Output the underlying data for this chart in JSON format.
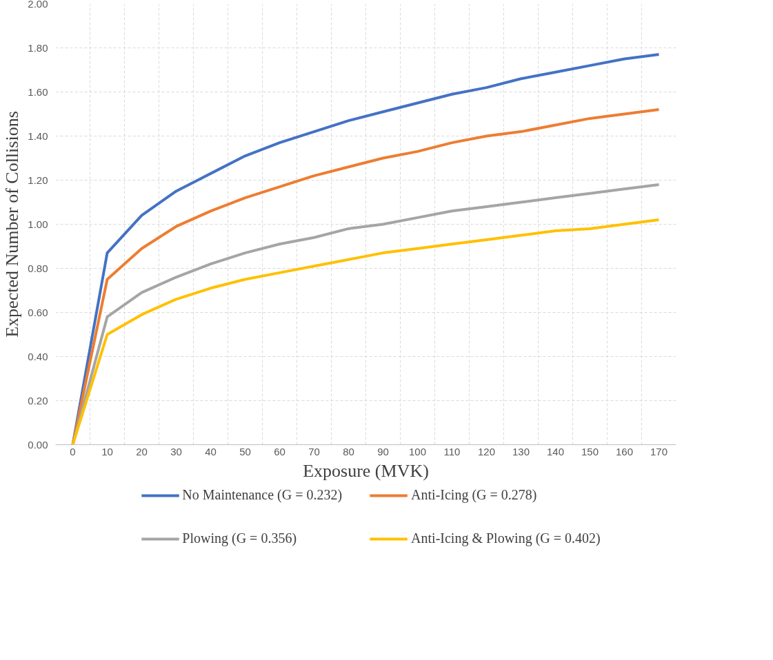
{
  "chart_data": {
    "type": "line",
    "xlabel": "Exposure (MVK)",
    "ylabel": "Expected Number of Collisions",
    "categories": [
      "0",
      "10",
      "20",
      "30",
      "40",
      "50",
      "60",
      "70",
      "80",
      "90",
      "100",
      "110",
      "120",
      "130",
      "140",
      "150",
      "160",
      "170"
    ],
    "series": [
      {
        "name": "No Maintenance (G = 0.232)",
        "color": "#4472c4",
        "values": [
          0,
          0.87,
          1.04,
          1.15,
          1.23,
          1.31,
          1.37,
          1.42,
          1.47,
          1.51,
          1.55,
          1.59,
          1.62,
          1.66,
          1.69,
          1.72,
          1.75,
          1.77
        ]
      },
      {
        "name": "Anti-Icing (G = 0.278)",
        "color": "#ed7d31",
        "values": [
          0,
          0.75,
          0.89,
          0.99,
          1.06,
          1.12,
          1.17,
          1.22,
          1.26,
          1.3,
          1.33,
          1.37,
          1.4,
          1.42,
          1.45,
          1.48,
          1.5,
          1.52
        ]
      },
      {
        "name": "Plowing (G = 0.356)",
        "color": "#a5a5a5",
        "values": [
          0,
          0.58,
          0.69,
          0.76,
          0.82,
          0.87,
          0.91,
          0.94,
          0.98,
          1.0,
          1.03,
          1.06,
          1.08,
          1.1,
          1.12,
          1.14,
          1.16,
          1.18
        ]
      },
      {
        "name": "Anti-Icing & Plowing (G = 0.402)",
        "color": "#ffc000",
        "values": [
          0,
          0.5,
          0.59,
          0.66,
          0.71,
          0.75,
          0.78,
          0.81,
          0.84,
          0.87,
          0.89,
          0.91,
          0.93,
          0.95,
          0.97,
          0.98,
          1.0,
          1.02
        ]
      }
    ],
    "ylim": [
      0,
      2
    ],
    "yticks": [
      {
        "value": 0,
        "label": "0.00"
      },
      {
        "value": 0.2,
        "label": "0.20"
      },
      {
        "value": 0.4,
        "label": "0.40"
      },
      {
        "value": 0.6,
        "label": "0.60"
      },
      {
        "value": 0.8,
        "label": "0.80"
      },
      {
        "value": 1.0,
        "label": "1.00"
      },
      {
        "value": 1.2,
        "label": "1.20"
      },
      {
        "value": 1.4,
        "label": "1.40"
      },
      {
        "value": 1.6,
        "label": "1.60"
      },
      {
        "value": 1.8,
        "label": "1.80"
      },
      {
        "value": 2.0,
        "label": "2.00"
      }
    ],
    "grid": true,
    "legend": "bottom",
    "marker": "none",
    "line_style": "solid"
  }
}
